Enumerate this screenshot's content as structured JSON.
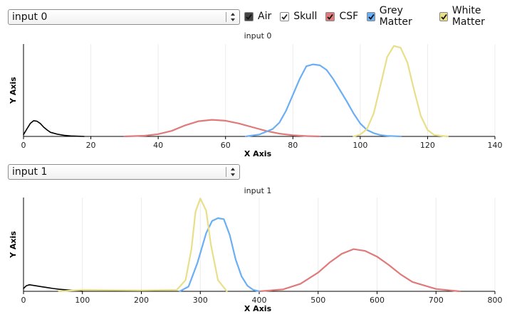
{
  "selects": [
    {
      "value": "input 0"
    },
    {
      "value": "input 1"
    }
  ],
  "legend": [
    {
      "label": "Air",
      "color": "#444444",
      "checked": true
    },
    {
      "label": "Skull",
      "color": "#ffffff",
      "checked": true
    },
    {
      "label": "CSF",
      "color": "#e07a7a",
      "checked": true
    },
    {
      "label": "Grey Matter",
      "color": "#6aaef5",
      "checked": true
    },
    {
      "label": "White Matter",
      "color": "#ebe08a",
      "checked": true
    }
  ],
  "colors": {
    "air": "#000000",
    "csf": "#e07a7a",
    "grey": "#6aaef5",
    "white": "#e8df88"
  },
  "chart_data": [
    {
      "type": "line",
      "title": "input 0",
      "xlabel": "X Axis",
      "ylabel": "Y Axis",
      "xlim": [
        0,
        140
      ],
      "ylim": [
        0,
        1
      ],
      "x_ticks": [
        0,
        20,
        40,
        60,
        80,
        100,
        120,
        140
      ],
      "grid": true,
      "series": [
        {
          "name": "Air",
          "key": "air",
          "x": [
            0,
            1,
            2,
            3,
            4,
            5,
            6,
            7,
            8,
            10,
            12,
            14,
            16,
            18
          ],
          "y": [
            0.02,
            0.08,
            0.14,
            0.17,
            0.165,
            0.14,
            0.1,
            0.07,
            0.045,
            0.025,
            0.012,
            0.005,
            0.002,
            0.0
          ]
        },
        {
          "name": "CSF",
          "key": "csf",
          "x": [
            30,
            36,
            40,
            44,
            48,
            52,
            56,
            60,
            64,
            68,
            72,
            76,
            80,
            84,
            88
          ],
          "y": [
            0.0,
            0.008,
            0.025,
            0.06,
            0.12,
            0.165,
            0.18,
            0.17,
            0.14,
            0.1,
            0.06,
            0.03,
            0.012,
            0.004,
            0.0
          ]
        },
        {
          "name": "Grey Matter",
          "key": "grey",
          "x": [
            66,
            70,
            74,
            76,
            78,
            80,
            82,
            84,
            86,
            88,
            90,
            92,
            94,
            96,
            98,
            100,
            102,
            104,
            106,
            108,
            112
          ],
          "y": [
            0.0,
            0.02,
            0.08,
            0.15,
            0.28,
            0.45,
            0.62,
            0.76,
            0.78,
            0.77,
            0.72,
            0.62,
            0.5,
            0.38,
            0.25,
            0.14,
            0.07,
            0.035,
            0.015,
            0.006,
            0.0
          ]
        },
        {
          "name": "White Matter",
          "key": "white",
          "x": [
            98,
            100,
            102,
            104,
            106,
            108,
            110,
            112,
            114,
            116,
            118,
            120,
            122,
            126
          ],
          "y": [
            0.0,
            0.02,
            0.08,
            0.25,
            0.55,
            0.86,
            0.98,
            0.96,
            0.8,
            0.5,
            0.22,
            0.07,
            0.015,
            0.0
          ]
        }
      ]
    },
    {
      "type": "line",
      "title": "input 1",
      "xlabel": "X Axis",
      "ylabel": "Y Axis",
      "xlim": [
        0,
        800
      ],
      "ylim": [
        0,
        1
      ],
      "x_ticks": [
        0,
        100,
        200,
        300,
        400,
        500,
        600,
        700,
        800
      ],
      "grid": true,
      "series": [
        {
          "name": "Air",
          "key": "air",
          "x": [
            0,
            5,
            10,
            15,
            20,
            30,
            40,
            50,
            60,
            80,
            100
          ],
          "y": [
            0.03,
            0.06,
            0.07,
            0.065,
            0.06,
            0.05,
            0.04,
            0.03,
            0.022,
            0.012,
            0.0
          ]
        },
        {
          "name": "CSF",
          "key": "csf",
          "x": [
            400,
            440,
            470,
            500,
            520,
            540,
            560,
            580,
            600,
            620,
            640,
            660,
            700,
            740
          ],
          "y": [
            0.0,
            0.02,
            0.08,
            0.2,
            0.31,
            0.4,
            0.45,
            0.43,
            0.37,
            0.28,
            0.18,
            0.1,
            0.025,
            0.0
          ]
        },
        {
          "name": "Grey Matter",
          "key": "grey",
          "x": [
            265,
            280,
            295,
            310,
            320,
            330,
            340,
            350,
            360,
            370,
            380,
            390,
            400
          ],
          "y": [
            0.0,
            0.05,
            0.3,
            0.62,
            0.75,
            0.78,
            0.77,
            0.6,
            0.34,
            0.16,
            0.06,
            0.015,
            0.0
          ]
        },
        {
          "name": "White Matter",
          "key": "white",
          "x": [
            60,
            100,
            200,
            260,
            275,
            285,
            292,
            300,
            310,
            318,
            330,
            345
          ],
          "y": [
            0.0,
            0.015,
            0.01,
            0.015,
            0.12,
            0.45,
            0.85,
            0.99,
            0.86,
            0.5,
            0.12,
            0.0
          ]
        }
      ]
    }
  ]
}
